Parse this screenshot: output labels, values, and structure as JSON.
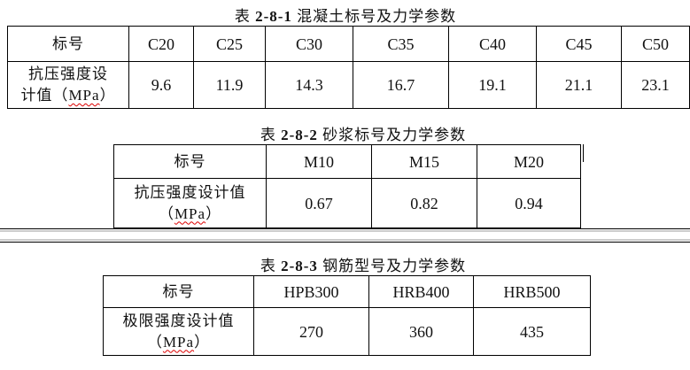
{
  "table1": {
    "caption_prefix": "表",
    "caption_num": "2-8-1",
    "caption_text": "混凝土标号及力学参数",
    "header_label": "标号",
    "grades": [
      "C20",
      "C25",
      "C30",
      "C35",
      "C40",
      "C45",
      "C50"
    ],
    "row_label_1": "抗压强度设",
    "row_label_2": "计值（",
    "row_unit": "MPa",
    "row_label_end": "）",
    "values": [
      "9.6",
      "11.9",
      "14.3",
      "16.7",
      "19.1",
      "21.1",
      "23.1"
    ]
  },
  "table2": {
    "caption_prefix": "表",
    "caption_num": "2-8-2",
    "caption_text": "砂浆标号及力学参数",
    "header_label": "标号",
    "grades": [
      "M10",
      "M15",
      "M20"
    ],
    "row_label_1": "抗压强度设计值",
    "row_label_2": "（",
    "row_unit": "MPa",
    "row_label_end": "）",
    "values": [
      "0.67",
      "0.82",
      "0.94"
    ]
  },
  "table3": {
    "caption_prefix": "表",
    "caption_num": "2-8-3",
    "caption_text": "钢筋型号及力学参数",
    "header_label": "标号",
    "grades": [
      "HPB300",
      "HRB400",
      "HRB500"
    ],
    "row_label_1": "极限强度设计值",
    "row_label_2": "（",
    "row_unit": "MPa",
    "row_label_end": "）",
    "values": [
      "270",
      "360",
      "435"
    ]
  }
}
